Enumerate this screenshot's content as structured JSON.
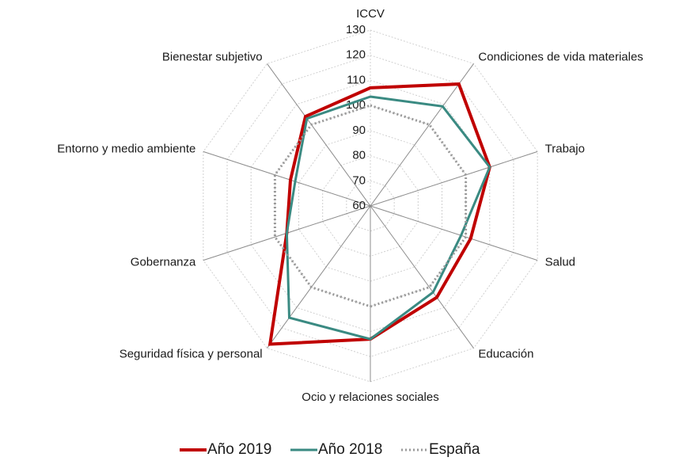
{
  "chart_data": {
    "type": "radar",
    "categories": [
      "ICCV",
      "Condiciones de vida materiales",
      "Trabajo",
      "Salud",
      "Educación",
      "Ocio y relaciones sociales",
      "Seguridad física y personal",
      "Gobernanza",
      "Entorno y medio ambiente",
      "Bienestar subjetivo"
    ],
    "series": [
      {
        "name": "Año 2019",
        "color": "#c00000",
        "line_style": "solid",
        "values": [
          107,
          120,
          110,
          102,
          105,
          113,
          128,
          95,
          93.5,
          104
        ]
      },
      {
        "name": "Año 2018",
        "color": "#3a8a82",
        "line_style": "solid",
        "values": [
          103.5,
          109,
          110,
          98,
          102.5,
          113,
          115,
          95,
          91.5,
          103
        ]
      },
      {
        "name": "España",
        "color": "#999999",
        "line_style": "dotted",
        "values": [
          100,
          100,
          100,
          100,
          100,
          100,
          100,
          100,
          100,
          100
        ]
      }
    ],
    "rlim": [
      60,
      130
    ],
    "rticks": [
      60,
      70,
      80,
      90,
      100,
      110,
      120,
      130
    ],
    "grid": true,
    "legend": "bottom"
  }
}
